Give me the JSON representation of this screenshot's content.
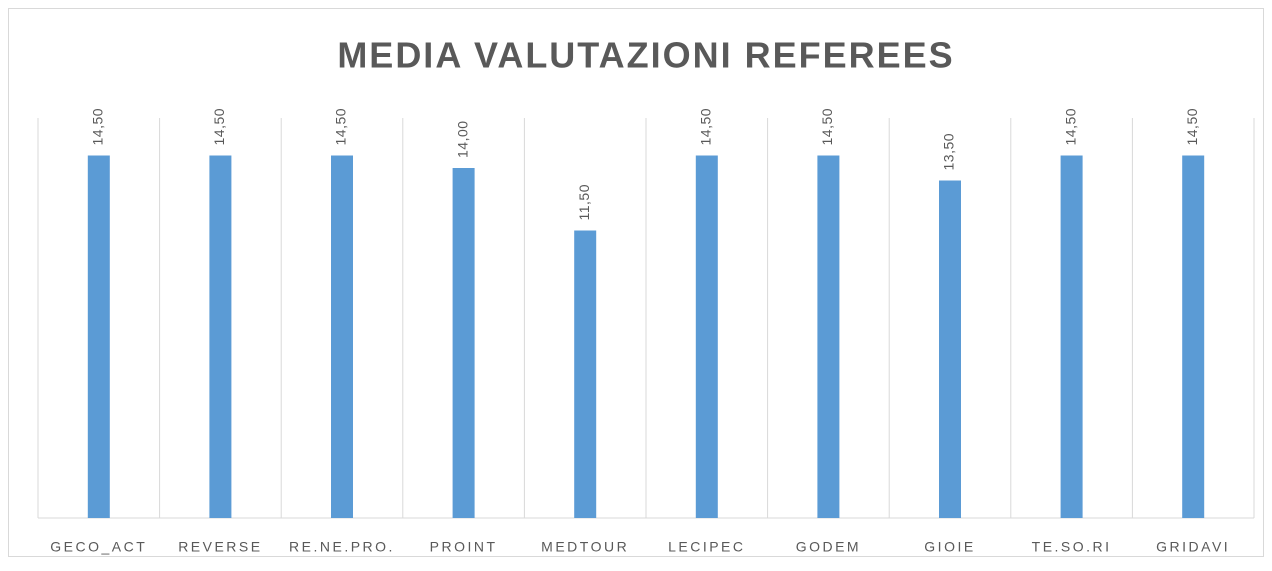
{
  "chart_data": {
    "type": "bar",
    "title": "MEDIA VALUTAZIONI REFEREES",
    "categories": [
      "GECO_ACT",
      "REVERSE",
      "RE.NE.PRO.",
      "PROINT",
      "MEDTOUR",
      "LECIPEC",
      "GODEM",
      "GIOIE",
      "TE.SO.RI",
      "GRIDAVI"
    ],
    "values": [
      14.5,
      14.5,
      14.5,
      14.0,
      11.5,
      14.5,
      14.5,
      13.5,
      14.5,
      14.5
    ],
    "value_labels": [
      "14,50",
      "14,50",
      "14,50",
      "14,00",
      "11,50",
      "14,50",
      "14,50",
      "13,50",
      "14,50",
      "14,50"
    ],
    "color": "#5b9bd5",
    "ylim": [
      0,
      16
    ]
  }
}
